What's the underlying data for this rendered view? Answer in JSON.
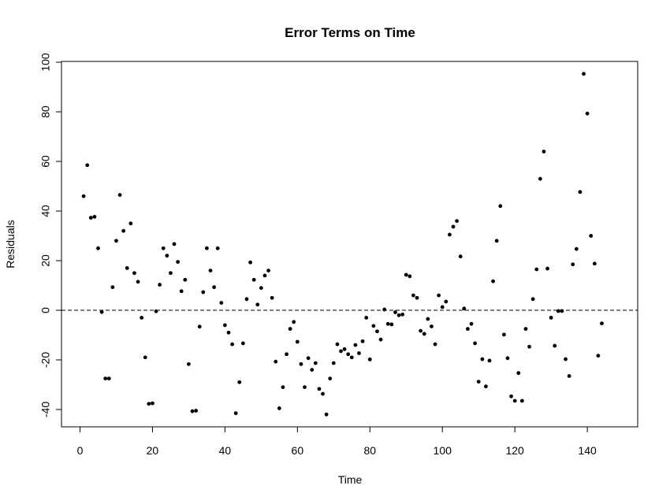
{
  "chart_data": {
    "type": "scatter",
    "title": "Error Terms on Time",
    "xlabel": "Time",
    "ylabel": "Residuals",
    "xlim": [
      0,
      144
    ],
    "ylim": [
      -42,
      100
    ],
    "x_ticks": [
      0,
      20,
      40,
      60,
      80,
      100,
      120,
      140
    ],
    "y_ticks": [
      -40,
      -20,
      0,
      20,
      40,
      60,
      80,
      100
    ],
    "x_tick_labels": [
      "0",
      "20",
      "40",
      "60",
      "80",
      "100",
      "120",
      "140"
    ],
    "y_tick_labels": [
      "-40",
      "-20",
      "0",
      "20",
      "40",
      "60",
      "80",
      "100"
    ],
    "reference_line": {
      "y": 0,
      "style": "dashed"
    },
    "grid": false,
    "point_color": "#000000",
    "x": [
      1,
      2,
      3,
      4,
      5,
      6,
      7,
      8,
      9,
      10,
      11,
      12,
      13,
      14,
      15,
      16,
      17,
      18,
      19,
      20,
      21,
      22,
      23,
      24,
      25,
      26,
      27,
      28,
      29,
      30,
      31,
      32,
      33,
      34,
      35,
      36,
      37,
      38,
      39,
      40,
      41,
      42,
      43,
      44,
      45,
      46,
      47,
      48,
      49,
      50,
      51,
      52,
      53,
      54,
      55,
      56,
      57,
      58,
      59,
      60,
      61,
      62,
      63,
      64,
      65,
      66,
      67,
      68,
      69,
      70,
      71,
      72,
      73,
      74,
      75,
      76,
      77,
      78,
      79,
      80,
      81,
      82,
      83,
      84,
      85,
      86,
      87,
      88,
      89,
      90,
      91,
      92,
      93,
      94,
      95,
      96,
      97,
      98,
      99,
      100,
      101,
      102,
      103,
      104,
      105,
      106,
      107,
      108,
      109,
      110,
      111,
      112,
      113,
      114,
      115,
      116,
      117,
      118,
      119,
      120,
      121,
      122,
      123,
      124,
      125,
      126,
      127,
      128,
      129,
      130,
      131,
      132,
      133,
      134,
      135,
      136,
      137,
      138,
      139,
      140,
      141,
      142,
      143,
      144
    ],
    "y": [
      46,
      58.5,
      37.3,
      37.7,
      25,
      -0.7,
      -27.5,
      -27.5,
      9.3,
      28,
      46.5,
      32,
      17,
      35,
      15,
      11.5,
      -3,
      -19,
      -37.7,
      -37.5,
      -0.4,
      10.3,
      25,
      22,
      15,
      26.7,
      19.5,
      7.7,
      12.3,
      -21.7,
      -40.7,
      -40.5,
      -6.6,
      7.3,
      25,
      16,
      9.3,
      25,
      3,
      -6,
      -9,
      -13.7,
      -41.5,
      -29,
      -13.3,
      4.5,
      19.3,
      12.3,
      2.3,
      9,
      14,
      16,
      5,
      -20.7,
      -39.5,
      -31,
      -17.7,
      -7.5,
      -4.7,
      -12.7,
      -21.7,
      -31,
      -19.3,
      -24,
      -21.3,
      -31.7,
      -33.7,
      -42,
      -27.5,
      -21.3,
      -13.7,
      -16.5,
      -15.7,
      -17.7,
      -19,
      -14,
      -17.3,
      -12.5,
      -3,
      -19.8,
      -6.3,
      -8.5,
      -11.8,
      0.3,
      -5.5,
      -5.7,
      -0.8,
      -2,
      -1.7,
      14.3,
      13.7,
      6,
      5,
      -8.3,
      -9.5,
      -3.5,
      -6.5,
      -13.7,
      6,
      1.3,
      3.5,
      30.5,
      33.7,
      36,
      21.7,
      0.7,
      -7.5,
      -5.5,
      -13.3,
      -28.8,
      -19.7,
      -30.7,
      -20.3,
      11.7,
      28,
      42,
      -9.8,
      -19.3,
      -34.7,
      -36.5,
      -25.3,
      -36.5,
      -7.5,
      -14.7,
      4.5,
      16.5,
      53,
      64,
      16.8,
      -3,
      -14.3,
      -0.3,
      -0.3,
      -19.7,
      -26.5,
      18.5,
      24.7,
      47.7,
      95.3,
      79.3,
      30,
      18.8,
      -18.3,
      -5.3
    ]
  }
}
